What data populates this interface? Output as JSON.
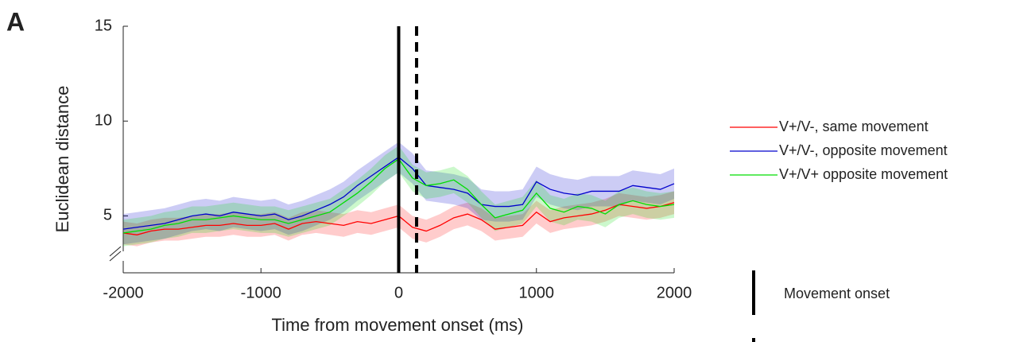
{
  "chart_data": {
    "type": "line",
    "panel_label": "A",
    "xlabel": "Time from movement onset (ms)",
    "ylabel": "Euclidean distance",
    "xlim": [
      -2000,
      2000
    ],
    "xticks": [
      -2000,
      -1000,
      0,
      1000,
      2000
    ],
    "ylim": [
      2,
      15
    ],
    "yticks": [
      5,
      10,
      15
    ],
    "x": [
      -2000,
      -1900,
      -1800,
      -1700,
      -1600,
      -1500,
      -1400,
      -1300,
      -1200,
      -1100,
      -1000,
      -900,
      -800,
      -700,
      -600,
      -500,
      -400,
      -300,
      -200,
      -100,
      0,
      100,
      200,
      300,
      400,
      500,
      600,
      700,
      800,
      900,
      1000,
      1100,
      1200,
      1300,
      1400,
      1500,
      1600,
      1700,
      1800,
      1900,
      2000
    ],
    "series": [
      {
        "name": "V+/V-, same movement",
        "color": "#ff0000",
        "values": [
          4.1,
          4.0,
          4.2,
          4.3,
          4.3,
          4.4,
          4.5,
          4.5,
          4.6,
          4.5,
          4.5,
          4.6,
          4.3,
          4.6,
          4.7,
          4.6,
          4.5,
          4.7,
          4.6,
          4.8,
          5.0,
          4.4,
          4.2,
          4.5,
          4.9,
          5.1,
          4.8,
          4.3,
          4.4,
          4.5,
          5.2,
          4.7,
          4.9,
          5.0,
          5.1,
          5.3,
          5.6,
          5.5,
          5.4,
          5.5,
          5.7
        ],
        "error": [
          0.6,
          0.6,
          0.6,
          0.6,
          0.6,
          0.6,
          0.6,
          0.6,
          0.6,
          0.6,
          0.6,
          0.6,
          0.6,
          0.6,
          0.6,
          0.6,
          0.6,
          0.6,
          0.6,
          0.6,
          0.6,
          0.6,
          0.6,
          0.6,
          0.6,
          0.6,
          0.6,
          0.6,
          0.6,
          0.6,
          0.6,
          0.6,
          0.6,
          0.6,
          0.6,
          0.6,
          0.6,
          0.6,
          0.6,
          0.6,
          0.6
        ]
      },
      {
        "name": "V+/V-, opposite movement",
        "color": "#0000cc",
        "values": [
          4.3,
          4.4,
          4.5,
          4.6,
          4.8,
          5.0,
          5.1,
          5.0,
          5.2,
          5.1,
          5.0,
          5.1,
          4.8,
          5.0,
          5.3,
          5.6,
          6.0,
          6.6,
          7.1,
          7.6,
          8.1,
          7.5,
          6.6,
          6.5,
          6.4,
          6.2,
          5.6,
          5.5,
          5.5,
          5.6,
          6.8,
          6.4,
          6.2,
          6.1,
          6.3,
          6.3,
          6.3,
          6.6,
          6.5,
          6.4,
          6.7
        ],
        "error": [
          0.8,
          0.8,
          0.8,
          0.8,
          0.8,
          0.8,
          0.8,
          0.8,
          0.8,
          0.8,
          0.8,
          0.8,
          0.8,
          0.8,
          0.8,
          0.8,
          0.8,
          0.8,
          0.8,
          0.8,
          0.8,
          0.8,
          0.8,
          0.8,
          0.8,
          0.8,
          0.8,
          0.8,
          0.8,
          0.8,
          0.8,
          0.8,
          0.8,
          0.8,
          0.8,
          0.8,
          0.8,
          0.8,
          0.8,
          0.8,
          0.8
        ]
      },
      {
        "name": "V+/V+ opposite movement",
        "color": "#00dd00",
        "values": [
          4.1,
          4.2,
          4.3,
          4.5,
          4.6,
          4.8,
          4.8,
          4.9,
          5.0,
          4.9,
          4.8,
          4.8,
          4.6,
          4.8,
          5.0,
          5.2,
          5.7,
          6.2,
          6.8,
          7.5,
          8.0,
          7.0,
          6.6,
          6.7,
          6.9,
          6.4,
          5.6,
          4.9,
          5.1,
          5.3,
          6.2,
          5.4,
          5.2,
          5.5,
          5.4,
          5.1,
          5.6,
          5.8,
          5.6,
          5.5,
          5.6
        ],
        "error": [
          0.7,
          0.7,
          0.7,
          0.7,
          0.7,
          0.7,
          0.7,
          0.7,
          0.7,
          0.7,
          0.7,
          0.7,
          0.7,
          0.7,
          0.7,
          0.7,
          0.7,
          0.7,
          0.7,
          0.7,
          0.7,
          0.7,
          0.7,
          0.7,
          0.7,
          0.7,
          0.7,
          0.7,
          0.7,
          0.7,
          0.7,
          0.7,
          0.7,
          0.7,
          0.7,
          0.7,
          0.7,
          0.7,
          0.7,
          0.7,
          0.7
        ]
      }
    ],
    "markers": [
      {
        "x": 0,
        "style": "solid",
        "label": "Movement onset"
      },
      {
        "x": 130,
        "style": "dashed"
      }
    ]
  }
}
